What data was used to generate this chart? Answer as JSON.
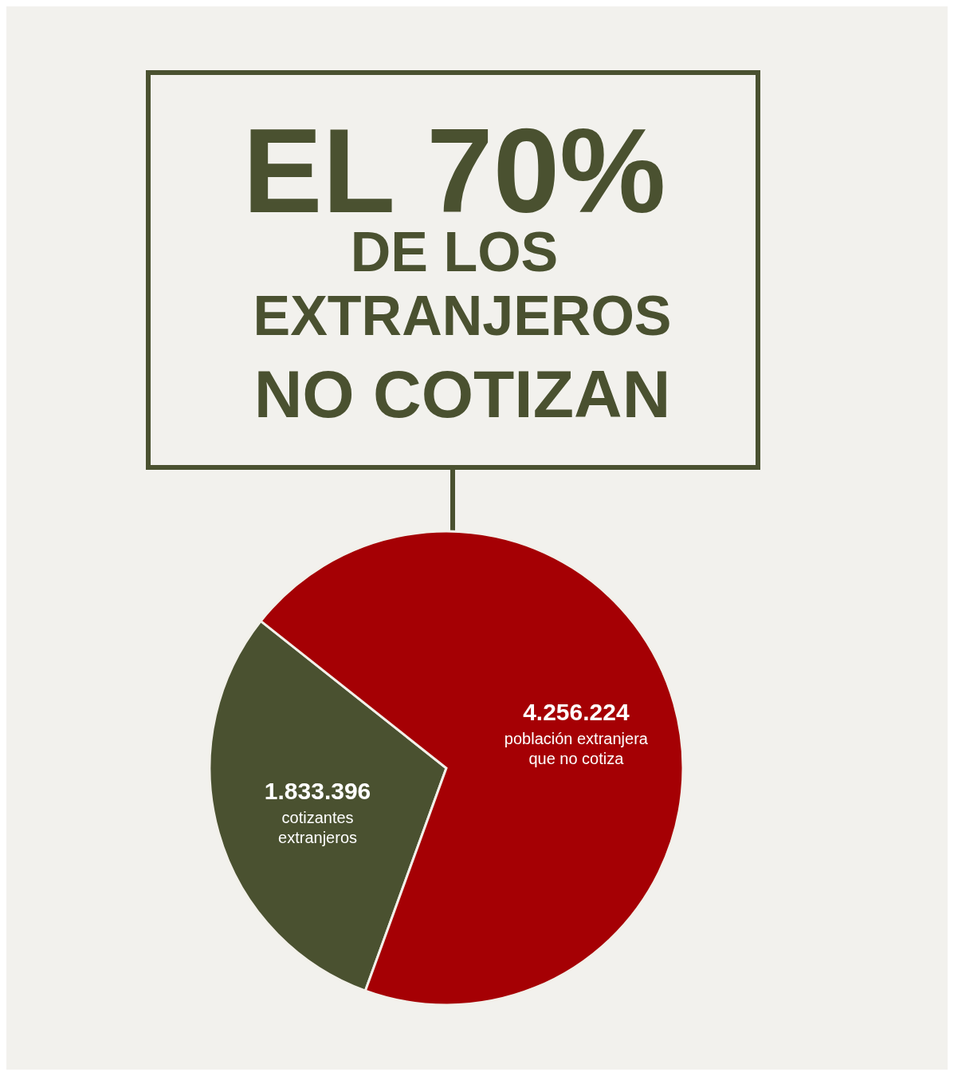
{
  "chart_data": {
    "type": "pie",
    "title": "EL 70%\nDE LOS\nEXTRANJEROS\nNO COTIZAN",
    "categories": [
      "cotizantes extranjeros",
      "población extranjera que no cotiza"
    ],
    "values": [
      1833396,
      4256224
    ],
    "colors": [
      "#4a5130",
      "#a50004"
    ],
    "value_labels": [
      "1.833.396",
      "4.256.224"
    ],
    "legend": false
  }
}
